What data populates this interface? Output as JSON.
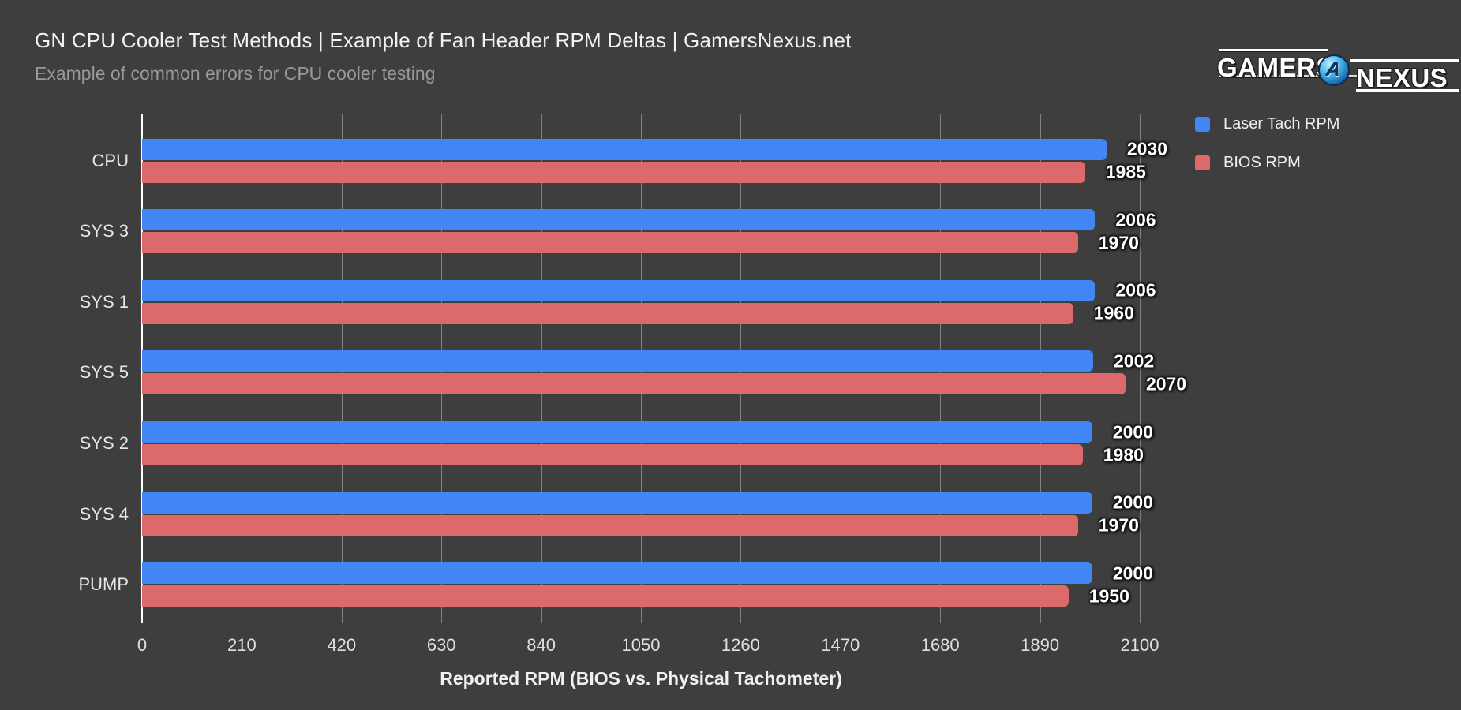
{
  "header": {
    "title": "GN CPU Cooler Test Methods | Example of Fan Header RPM Deltas | GamersNexus.net",
    "subtitle": "Example of common errors for CPU cooler testing"
  },
  "logo": {
    "left_text": "GAMERS",
    "right_text": "NEXUS",
    "orb_letter": "A"
  },
  "colors": {
    "background": "#3e3e3e",
    "title_text": "#f2f2f2",
    "subtitle_text": "#999999",
    "gridline": "#818181",
    "axis_line": "#ffffff",
    "laser_tach_blue": "#4285f4",
    "bios_red": "#dc6a6a"
  },
  "chart_data": {
    "type": "bar",
    "orientation": "horizontal",
    "title": "GN CPU Cooler Test Methods | Example of Fan Header RPM Deltas | GamersNexus.net",
    "subtitle": "Example of common errors for CPU cooler testing",
    "categories": [
      "CPU",
      "SYS 3",
      "SYS 1",
      "SYS 5",
      "SYS 2",
      "SYS 4",
      "PUMP"
    ],
    "series": [
      {
        "name": "Laser Tach RPM",
        "color": "#4285f4",
        "values": [
          2030,
          2006,
          2006,
          2002,
          2000,
          2000,
          2000
        ]
      },
      {
        "name": "BIOS RPM",
        "color": "#dc6a6a",
        "values": [
          1985,
          1970,
          1960,
          2070,
          1980,
          1970,
          1950
        ]
      }
    ],
    "xlabel": "Reported RPM (BIOS vs. Physical Tachometer)",
    "xlim": [
      0,
      2100
    ],
    "xticks": [
      0,
      210,
      420,
      630,
      840,
      1050,
      1260,
      1470,
      1680,
      1890,
      2100
    ],
    "grid": true,
    "legend_position": "top-right",
    "data_labels": true
  }
}
